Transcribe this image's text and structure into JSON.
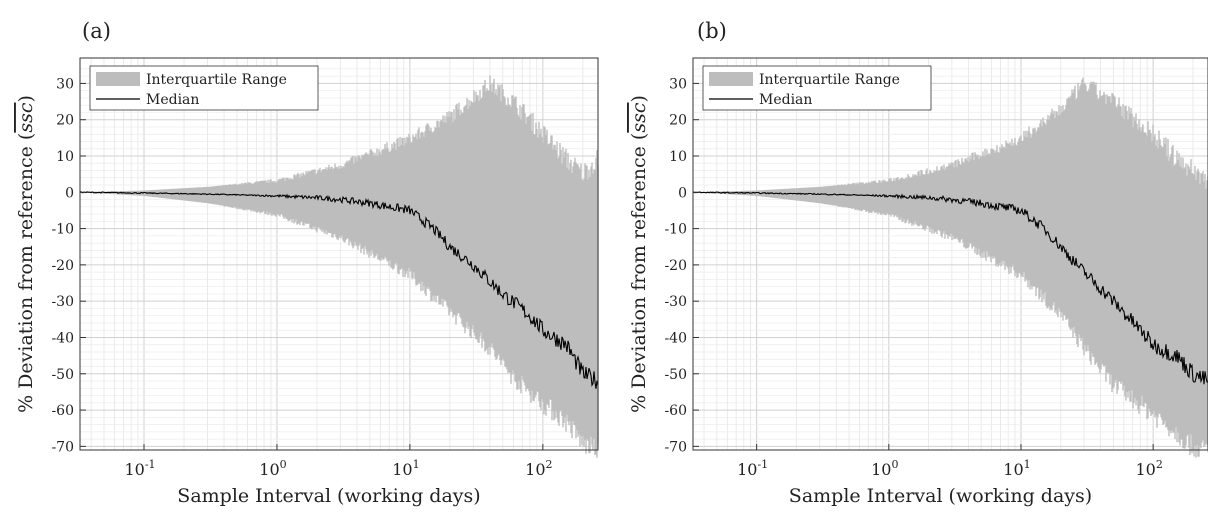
{
  "chart_data": [
    {
      "type": "area",
      "panel_label": "(a)",
      "xlabel": "Sample Interval (working days)",
      "ylabel_prefix": "% Deviation from reference (",
      "ylabel_var": "ssc",
      "ylabel_suffix": ")",
      "xscale": "log",
      "xlim": [
        0.033,
        260
      ],
      "ylim": [
        -71,
        37
      ],
      "yticks": [
        -70,
        -60,
        -50,
        -40,
        -30,
        -20,
        -10,
        0,
        10,
        20,
        30
      ],
      "xtick_labels": [
        {
          "value": 0.1,
          "base": "10",
          "exp": "-1"
        },
        {
          "value": 1,
          "base": "10",
          "exp": "0"
        },
        {
          "value": 10,
          "base": "10",
          "exp": "1"
        },
        {
          "value": 100,
          "base": "10",
          "exp": "2"
        }
      ],
      "grid": true,
      "legend": {
        "placement": "top-left",
        "entries": [
          "Interquartile Range",
          "Median"
        ]
      },
      "series": [
        {
          "name": "Interquartile Range",
          "kind": "band",
          "color": "#bdbdbd",
          "x": [
            0.033,
            0.1,
            0.3,
            1,
            3,
            10,
            20,
            40,
            60,
            100,
            150,
            200,
            260
          ],
          "upper": [
            0,
            0.5,
            1.5,
            3,
            7,
            14,
            20,
            29,
            24,
            15,
            8,
            4,
            8
          ],
          "lower": [
            0,
            -1,
            -3,
            -6,
            -12,
            -22,
            -32,
            -42,
            -50,
            -57,
            -62,
            -68,
            -70
          ]
        },
        {
          "name": "Median",
          "kind": "line",
          "color": "#000000",
          "x": [
            0.033,
            0.1,
            0.3,
            1,
            2,
            3,
            5,
            10,
            15,
            20,
            30,
            50,
            80,
            100,
            150,
            200,
            260
          ],
          "y": [
            0,
            -0.2,
            -0.5,
            -1,
            -1.5,
            -2,
            -3,
            -5,
            -10,
            -15,
            -20,
            -28,
            -34,
            -38,
            -42,
            -50,
            -52
          ]
        }
      ]
    },
    {
      "type": "area",
      "panel_label": "(b)",
      "xlabel": "Sample Interval (working days)",
      "ylabel_prefix": "% Deviation from reference (",
      "ylabel_var": "ssc",
      "ylabel_suffix": ")",
      "xscale": "log",
      "xlim": [
        0.033,
        260
      ],
      "ylim": [
        -71,
        37
      ],
      "yticks": [
        -70,
        -60,
        -50,
        -40,
        -30,
        -20,
        -10,
        0,
        10,
        20,
        30
      ],
      "xtick_labels": [
        {
          "value": 0.1,
          "base": "10",
          "exp": "-1"
        },
        {
          "value": 1,
          "base": "10",
          "exp": "0"
        },
        {
          "value": 10,
          "base": "10",
          "exp": "1"
        },
        {
          "value": 100,
          "base": "10",
          "exp": "2"
        }
      ],
      "grid": true,
      "legend": {
        "placement": "top-left",
        "entries": [
          "Interquartile Range",
          "Median"
        ]
      },
      "series": [
        {
          "name": "Interquartile Range",
          "kind": "band",
          "color": "#bdbdbd",
          "x": [
            0.033,
            0.1,
            0.3,
            1,
            3,
            10,
            20,
            30,
            50,
            100,
            150,
            200,
            260
          ],
          "upper": [
            0,
            0.5,
            1.5,
            3,
            7,
            14,
            22,
            29,
            24,
            15,
            8,
            5,
            2
          ],
          "lower": [
            0,
            -1,
            -3,
            -6,
            -12,
            -22,
            -33,
            -42,
            -52,
            -60,
            -65,
            -69,
            -70
          ]
        },
        {
          "name": "Median",
          "kind": "line",
          "color": "#000000",
          "x": [
            0.033,
            0.1,
            0.3,
            1,
            2,
            3,
            5,
            10,
            15,
            20,
            30,
            50,
            80,
            100,
            150,
            200,
            260
          ],
          "y": [
            0,
            -0.2,
            -0.5,
            -1,
            -1.5,
            -2,
            -3,
            -5,
            -10,
            -15,
            -22,
            -30,
            -38,
            -42,
            -45,
            -50,
            -52
          ]
        }
      ]
    }
  ]
}
